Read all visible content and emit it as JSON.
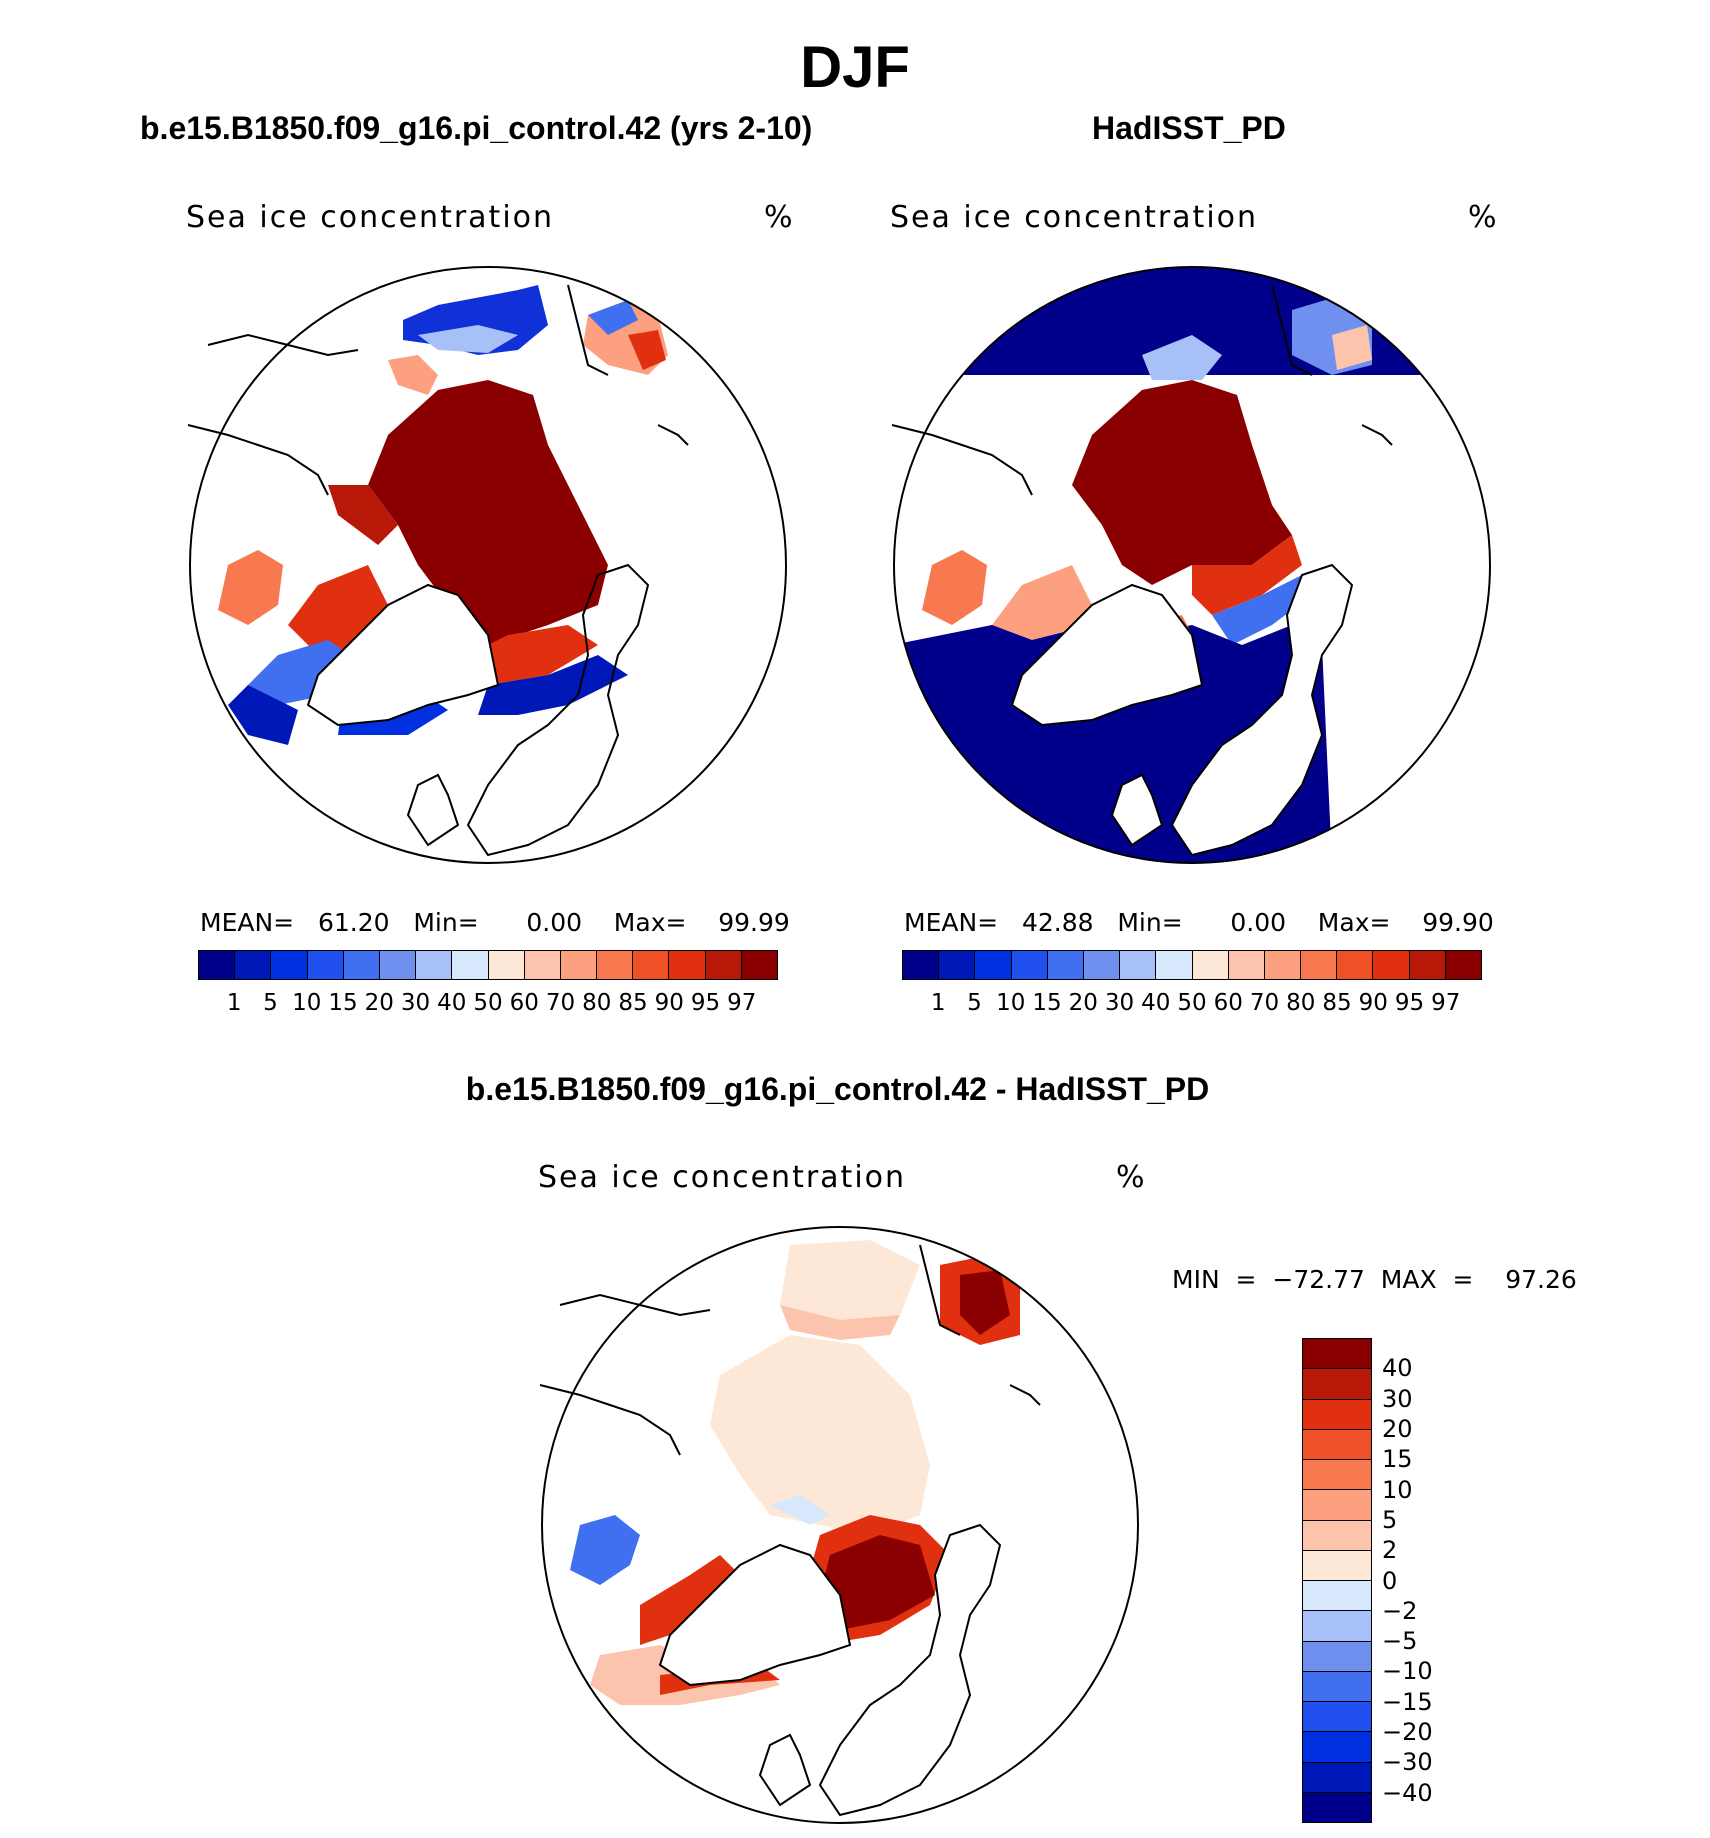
{
  "figure": {
    "season": "DJF"
  },
  "panels": [
    {
      "title": "b.e15.B1850.f09_g16.pi_control.42 (yrs 2-10)",
      "variable": "Sea ice concentration",
      "units": "%",
      "stats": "MEAN=   61.20   Min=      0.00    Max=    99.99"
    },
    {
      "title": "HadISST_PD",
      "variable": "Sea ice concentration",
      "units": "%",
      "stats": "MEAN=   42.88   Min=      0.00    Max=    99.90"
    },
    {
      "title": "b.e15.B1850.f09_g16.pi_control.42 - HadISST_PD",
      "variable": "Sea ice concentration",
      "units": "%",
      "stats": "MIN  =  −72.77  MAX  =    97.26"
    }
  ],
  "colorbar_main": {
    "labels": [
      "1",
      "5",
      "10",
      "15",
      "20",
      "30",
      "40",
      "50",
      "60",
      "70",
      "80",
      "85",
      "90",
      "95",
      "97"
    ],
    "colors": [
      "#00008a",
      "#0018b8",
      "#0030e0",
      "#2050f0",
      "#4070f0",
      "#7090f0",
      "#a8c0f8",
      "#d8e8fc",
      "#fde8d8",
      "#fcc4ac",
      "#fca080",
      "#f87850",
      "#f05028",
      "#e03010",
      "#b81808",
      "#8a0000"
    ]
  },
  "colorbar_diff": {
    "labels": [
      "40",
      "30",
      "20",
      "15",
      "10",
      "5",
      "2",
      "0",
      "−2",
      "−5",
      "−10",
      "−15",
      "−20",
      "−30",
      "−40"
    ],
    "colors": [
      "#8a0000",
      "#b81808",
      "#e03010",
      "#f05028",
      "#f87850",
      "#fca080",
      "#fcc4ac",
      "#fde8d8",
      "#d8e8fc",
      "#a8c0f8",
      "#7090f0",
      "#4070f0",
      "#2050f0",
      "#0030e0",
      "#0018b8",
      "#00008a"
    ]
  }
}
